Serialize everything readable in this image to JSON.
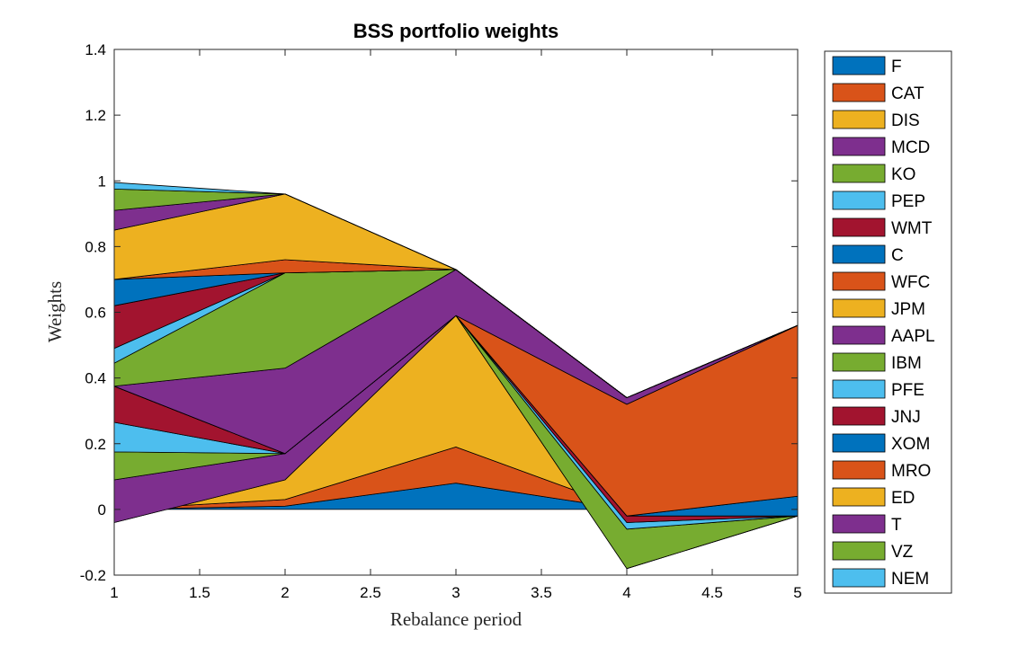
{
  "chart_data": {
    "type": "area",
    "title": "BSS portfolio weights",
    "xlabel": "Rebalance period",
    "ylabel": "Weights",
    "xlim": [
      1,
      5
    ],
    "ylim": [
      -0.2,
      1.4
    ],
    "x": [
      1,
      2,
      3,
      4,
      5
    ],
    "xticks": [
      "1",
      "1.5",
      "2",
      "2.5",
      "3",
      "3.5",
      "4",
      "4.5",
      "5"
    ],
    "yticks": [
      "-0.2",
      "0",
      "0.2",
      "0.4",
      "0.6",
      "0.8",
      "1",
      "1.2",
      "1.4"
    ],
    "legend_position": "outside-right",
    "series": [
      {
        "name": "F",
        "color": "#0072BD",
        "values": [
          0.0,
          0.01,
          0.08,
          0.0,
          0.0
        ]
      },
      {
        "name": "CAT",
        "color": "#D95319",
        "values": [
          0.0,
          0.02,
          0.11,
          0.0,
          0.0
        ]
      },
      {
        "name": "DIS",
        "color": "#EDB120",
        "values": [
          -0.04,
          0.06,
          0.4,
          -0.18,
          -0.02
        ]
      },
      {
        "name": "MCD",
        "color": "#7E2F8E",
        "values": [
          0.13,
          0.08,
          0.0,
          0.0,
          0.0
        ]
      },
      {
        "name": "KO",
        "color": "#77AC30",
        "values": [
          0.085,
          0.0,
          0.0,
          0.12,
          0.0
        ]
      },
      {
        "name": "PEP",
        "color": "#4DBEEE",
        "values": [
          0.09,
          0.0,
          0.0,
          0.02,
          0.0
        ]
      },
      {
        "name": "WMT",
        "color": "#A2142F",
        "values": [
          0.11,
          0.0,
          0.0,
          0.02,
          0.0
        ]
      },
      {
        "name": "C",
        "color": "#0072BD",
        "values": [
          0.0,
          0.0,
          0.0,
          0.0,
          0.06
        ]
      },
      {
        "name": "WFC",
        "color": "#D95319",
        "values": [
          0.0,
          0.0,
          0.0,
          0.34,
          0.52
        ]
      },
      {
        "name": "JPM",
        "color": "#EDB120",
        "values": [
          0.0,
          0.0,
          0.0,
          0.0,
          0.0
        ]
      },
      {
        "name": "AAPL",
        "color": "#7E2F8E",
        "values": [
          0.0,
          0.26,
          0.14,
          0.02,
          0.0
        ]
      },
      {
        "name": "IBM",
        "color": "#77AC30",
        "values": [
          0.07,
          0.29,
          0.0,
          0.0,
          0.0
        ]
      },
      {
        "name": "PFE",
        "color": "#4DBEEE",
        "values": [
          0.045,
          0.0,
          0.0,
          0.0,
          0.0
        ]
      },
      {
        "name": "JNJ",
        "color": "#A2142F",
        "values": [
          0.13,
          0.0,
          0.0,
          0.0,
          0.0
        ]
      },
      {
        "name": "XOM",
        "color": "#0072BD",
        "values": [
          0.08,
          0.0,
          0.0,
          0.0,
          0.0
        ]
      },
      {
        "name": "MRO",
        "color": "#D95319",
        "values": [
          0.0,
          0.04,
          0.0,
          0.0,
          0.0
        ]
      },
      {
        "name": "ED",
        "color": "#EDB120",
        "values": [
          0.15,
          0.2,
          0.0,
          0.0,
          0.0
        ]
      },
      {
        "name": "T",
        "color": "#7E2F8E",
        "values": [
          0.06,
          0.0,
          0.0,
          0.0,
          0.0
        ]
      },
      {
        "name": "VZ",
        "color": "#77AC30",
        "values": [
          0.065,
          0.0,
          0.0,
          0.0,
          0.0
        ]
      },
      {
        "name": "NEM",
        "color": "#4DBEEE",
        "values": [
          0.02,
          0.0,
          0.0,
          0.0,
          0.0
        ]
      }
    ]
  }
}
